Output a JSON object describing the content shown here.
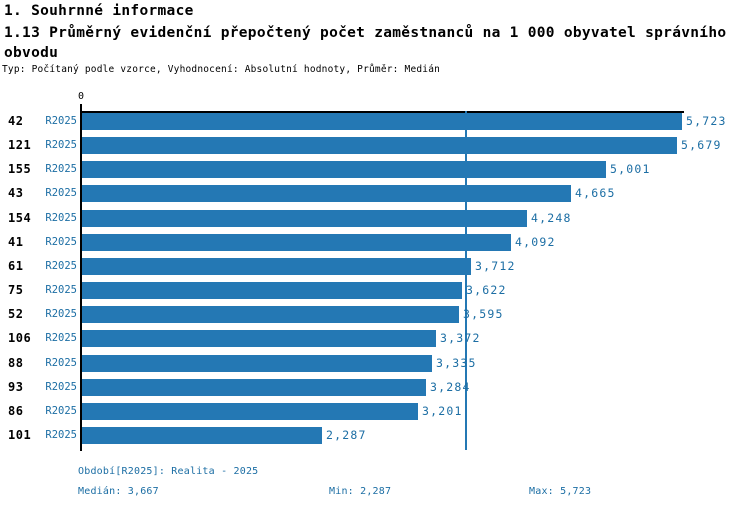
{
  "header": {
    "section_title": "1. Souhrnné informace",
    "subtitle": "Typ: Počítaný podle vzorce, Vyhodnocení: Absolutní hodnoty, Průměr: Medián"
  },
  "chart_data": {
    "type": "bar",
    "orientation": "horizontal",
    "title": "1.13 Průměrný evidenční přepočtený počet zaměstnanců na 1 000 obyvatel správního obvodu",
    "categories": [
      "42",
      "121",
      "155",
      "43",
      "154",
      "41",
      "61",
      "75",
      "52",
      "106",
      "88",
      "93",
      "86",
      "101"
    ],
    "series": [
      {
        "name": "R2025",
        "values": [
          5723,
          5679,
          5001,
          4665,
          4248,
          4092,
          3712,
          3622,
          3595,
          3372,
          3335,
          3284,
          3201,
          2287
        ]
      }
    ],
    "value_labels": [
      "5,723",
      "5,679",
      "5,001",
      "4,665",
      "4,248",
      "4,092",
      "3,712",
      "3,622",
      "3,595",
      "3,372",
      "3,335",
      "3,284",
      "3,201",
      "2,287"
    ],
    "xlim": [
      0,
      5723
    ],
    "x_tick_label": "0",
    "median_line_value": 3667,
    "grid": false,
    "legend_position": "none",
    "colors": {
      "bar": "#2478b4",
      "median_line": "#2478b4",
      "blue_text": "#1c6ea4",
      "axis": "#000000"
    }
  },
  "footer": {
    "period_label": "Období[R2025]: Realita - 2025",
    "median_label": "Medián: 3,667",
    "min_label": "Min: 2,287",
    "max_label": "Max: 5,723"
  }
}
